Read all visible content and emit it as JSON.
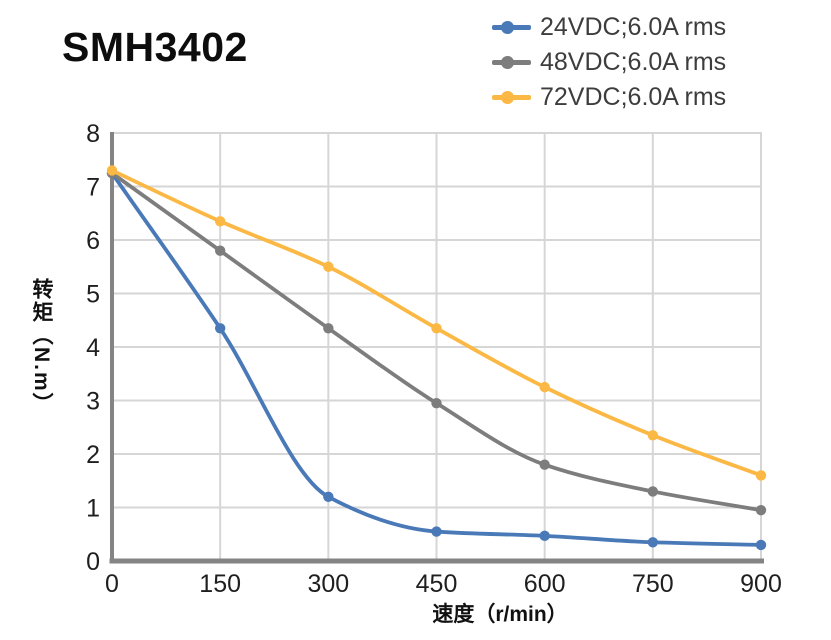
{
  "chart_data": {
    "type": "line",
    "title": "SMH3402",
    "x": [
      0,
      150,
      300,
      450,
      600,
      750,
      900
    ],
    "series": [
      {
        "name": "24VDC;6.0A rms",
        "color": "#4a79b8",
        "values": [
          7.25,
          4.35,
          1.2,
          0.55,
          0.47,
          0.35,
          0.3
        ]
      },
      {
        "name": "48VDC;6.0A rms",
        "color": "#7d7d7d",
        "values": [
          7.25,
          5.8,
          4.35,
          2.95,
          1.8,
          1.3,
          0.95
        ]
      },
      {
        "name": "72VDC;6.0A rms",
        "color": "#fbb845",
        "values": [
          7.3,
          6.35,
          5.5,
          4.35,
          3.25,
          2.35,
          1.6
        ]
      }
    ],
    "xlabel": "速度（r/min）",
    "ylabel": "转矩（N.m）",
    "xlim": [
      0,
      900
    ],
    "ylim": [
      0,
      8
    ],
    "xticks": [
      0,
      150,
      300,
      450,
      600,
      750,
      900
    ],
    "yticks": [
      0,
      1,
      2,
      3,
      4,
      5,
      6,
      7,
      8
    ],
    "grid": true,
    "smooth": true,
    "marker": "circle",
    "legend_position": "top-right"
  },
  "style": {
    "grid_color": "#d6d6d6",
    "axis_color": "#848484",
    "tick_text_color": "#1f1f1f",
    "legend_text_color": "#3d3d3d",
    "title_color": "#0d0d0d",
    "background": "#ffffff"
  }
}
